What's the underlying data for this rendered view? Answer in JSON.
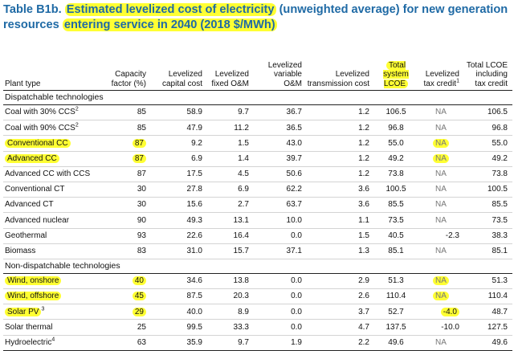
{
  "title": {
    "prefix": "Table B1b. ",
    "highlight1": "Estimated levelized cost of electricity",
    "middle": " (unweighted average) for new generation resources ",
    "highlight2": "entering service in 2040 (2018 $/MWh)"
  },
  "columns": [
    "Plant type",
    "Capacity factor (%)",
    "Levelized capital cost",
    "Levelized fixed O&M",
    "Levelized variable O&M",
    "Levelized transmission cost",
    "Total system LCOE",
    "Levelized tax credit",
    "Total LCOE including tax credit"
  ],
  "column_superscripts": {
    "tax_credit": "1"
  },
  "highlight_color": "#ffff33",
  "title_color": "#1f6aa5",
  "sections": [
    {
      "label": "Dispatchable technologies",
      "rows": [
        {
          "name": "Coal with 30% CCS",
          "sup": "2",
          "values": [
            "85",
            "58.9",
            "9.7",
            "36.7",
            "1.2",
            "106.5",
            "NA",
            "106.5"
          ]
        },
        {
          "name": "Coal with 90% CCS",
          "sup": "2",
          "values": [
            "85",
            "47.9",
            "11.2",
            "36.5",
            "1.2",
            "96.8",
            "NA",
            "96.8"
          ]
        },
        {
          "name": "Conventional CC",
          "sup": "",
          "values": [
            "87",
            "9.2",
            "1.5",
            "43.0",
            "1.2",
            "55.0",
            "NA",
            "55.0"
          ],
          "hl": [
            0,
            1,
            6
          ]
        },
        {
          "name": "Advanced CC",
          "sup": "",
          "values": [
            "87",
            "6.9",
            "1.4",
            "39.7",
            "1.2",
            "49.2",
            "NA",
            "49.2"
          ],
          "hl": [
            0,
            1,
            6
          ]
        },
        {
          "name": "Advanced CC with CCS",
          "sup": "",
          "values": [
            "87",
            "17.5",
            "4.5",
            "50.6",
            "1.2",
            "73.8",
            "NA",
            "73.8"
          ]
        },
        {
          "name": "Conventional CT",
          "sup": "",
          "values": [
            "30",
            "27.8",
            "6.9",
            "62.2",
            "3.6",
            "100.5",
            "NA",
            "100.5"
          ]
        },
        {
          "name": "Advanced CT",
          "sup": "",
          "values": [
            "30",
            "15.6",
            "2.7",
            "63.7",
            "3.6",
            "85.5",
            "NA",
            "85.5"
          ]
        },
        {
          "name": "Advanced nuclear",
          "sup": "",
          "values": [
            "90",
            "49.3",
            "13.1",
            "10.0",
            "1.1",
            "73.5",
            "NA",
            "73.5"
          ]
        },
        {
          "name": "Geothermal",
          "sup": "",
          "values": [
            "93",
            "22.6",
            "16.4",
            "0.0",
            "1.5",
            "40.5",
            "-2.3",
            "38.3"
          ]
        },
        {
          "name": "Biomass",
          "sup": "",
          "values": [
            "83",
            "31.0",
            "15.7",
            "37.1",
            "1.3",
            "85.1",
            "NA",
            "85.1"
          ]
        }
      ]
    },
    {
      "label": "Non-dispatchable technologies",
      "rows": [
        {
          "name": "Wind, onshore",
          "sup": "",
          "values": [
            "40",
            "34.6",
            "13.8",
            "0.0",
            "2.9",
            "51.3",
            "NA",
            "51.3"
          ],
          "hl": [
            0,
            1,
            6
          ]
        },
        {
          "name": "Wind, offshore",
          "sup": "",
          "values": [
            "45",
            "87.5",
            "20.3",
            "0.0",
            "2.6",
            "110.4",
            "NA",
            "110.4"
          ],
          "hl": [
            0,
            1,
            6
          ]
        },
        {
          "name": "Solar PV",
          "sup": "3",
          "values": [
            "29",
            "40.0",
            "8.9",
            "0.0",
            "3.7",
            "52.7",
            "-4.0",
            "48.7"
          ],
          "hl": [
            0,
            1,
            6
          ]
        },
        {
          "name": "Solar thermal",
          "sup": "",
          "values": [
            "25",
            "99.5",
            "33.3",
            "0.0",
            "4.7",
            "137.5",
            "-10.0",
            "127.5"
          ]
        },
        {
          "name": "Hydroelectric",
          "sup": "4",
          "values": [
            "63",
            "35.9",
            "9.7",
            "1.9",
            "2.2",
            "49.6",
            "NA",
            "49.6"
          ]
        }
      ]
    }
  ]
}
